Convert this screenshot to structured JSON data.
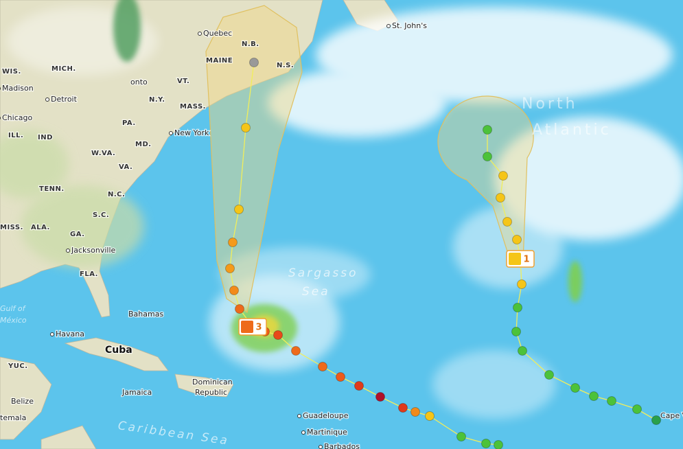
{
  "map": {
    "labels": [
      "Quebec",
      "N.B.",
      "MAINE",
      "N.S.",
      "St. John's",
      "WIS.",
      "MICH.",
      "Madison",
      "Detroit",
      "onto",
      "VT.",
      "N.Y.",
      "MASS.",
      "Chicago",
      "ILL.",
      "IND",
      "PA.",
      "New York",
      "MD.",
      "W.VA.",
      "VA.",
      "TENN.",
      "N.C.",
      "S.C.",
      "MISS.",
      "ALA.",
      "GA.",
      "Jacksonville",
      "FLA.",
      "Bahamas",
      "Havana",
      "Cuba",
      "Jamaica",
      "Dominican",
      "Republic",
      "YUC.",
      "Belize",
      "temala",
      "Guadeloupe",
      "Martinique",
      "Barbados",
      "Caribbean Sea",
      "Sargasso",
      "Sea",
      "North",
      "Atlantic",
      "Cape V",
      "Gulf of",
      "México"
    ],
    "storms": [
      {
        "category": "3"
      },
      {
        "category": "1"
      }
    ]
  }
}
